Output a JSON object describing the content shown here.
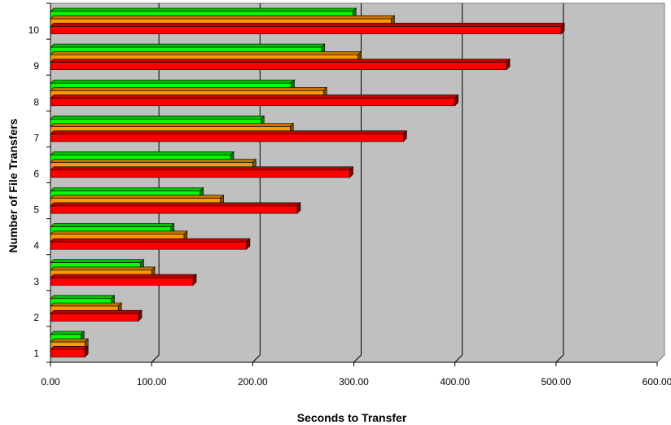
{
  "chart_data": {
    "type": "bar",
    "orientation": "horizontal",
    "xlabel": "Seconds to Transfer",
    "ylabel": "Number of File Transfers",
    "xlim": [
      0,
      600
    ],
    "x_tick_labels": [
      "0.00",
      "100.00",
      "200.00",
      "300.00",
      "400.00",
      "500.00",
      "600.00"
    ],
    "categories": [
      "1",
      "2",
      "3",
      "4",
      "5",
      "6",
      "7",
      "8",
      "9",
      "10"
    ],
    "grid": true,
    "legend": "none",
    "series": [
      {
        "color": "#00ff00",
        "values": [
          30,
          60,
          89,
          119,
          148,
          178,
          208,
          238,
          268,
          299
        ]
      },
      {
        "color": "#ff9900",
        "values": [
          34,
          67,
          100,
          132,
          168,
          200,
          237,
          270,
          304,
          337
        ]
      },
      {
        "color": "#ff0000",
        "values": [
          34,
          87,
          141,
          194,
          244,
          296,
          349,
          400,
          451,
          505
        ]
      }
    ],
    "colors": {
      "plot_background": "#c0c0c0",
      "grid": "#000000"
    }
  }
}
